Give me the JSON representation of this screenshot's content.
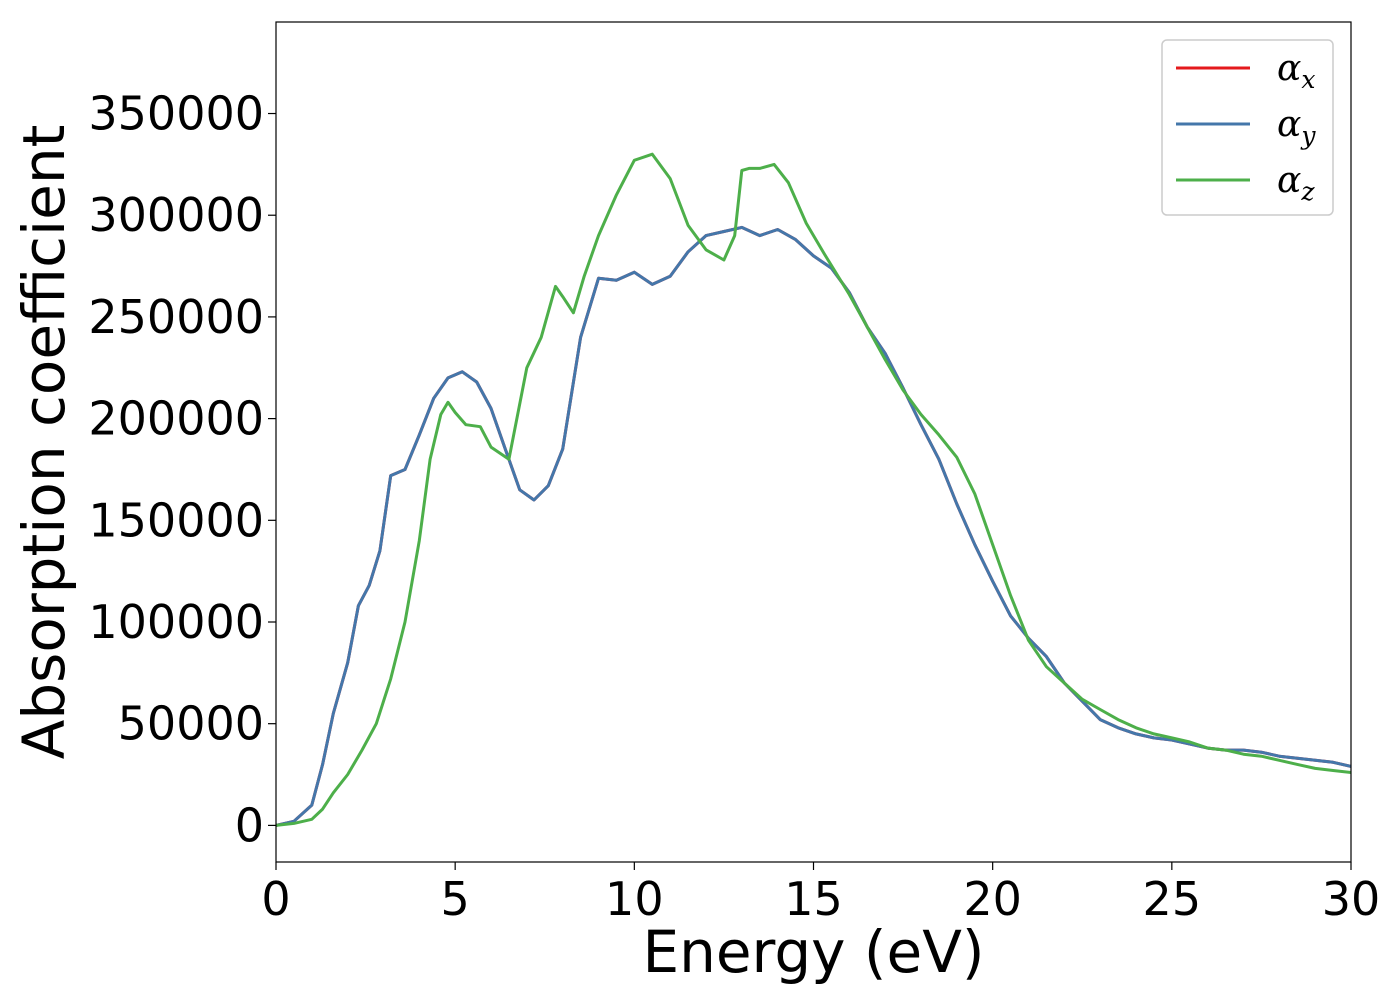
{
  "chart_data": {
    "type": "line",
    "title": "",
    "xlabel": "Energy (eV)",
    "ylabel": "Absorption coefficient",
    "xlim": [
      0,
      30
    ],
    "ylim": [
      -18000,
      395000
    ],
    "xticks": [
      0,
      5,
      10,
      15,
      20,
      25,
      30
    ],
    "yticks": [
      0,
      50000,
      100000,
      150000,
      200000,
      250000,
      300000,
      350000
    ],
    "grid": false,
    "legend_position": "top-right",
    "series": [
      {
        "name": "α",
        "subscript": "x",
        "color": "#e41a1c",
        "x": [
          0,
          0.5,
          1.0,
          1.3,
          1.6,
          2.0,
          2.3,
          2.6,
          2.9,
          3.2,
          3.6,
          4.0,
          4.4,
          4.8,
          5.2,
          5.6,
          6.0,
          6.4,
          6.8,
          7.2,
          7.6,
          8.0,
          8.5,
          9.0,
          9.5,
          10.0,
          10.5,
          11.0,
          11.5,
          12.0,
          12.5,
          13.0,
          13.5,
          14.0,
          14.5,
          15.0,
          15.5,
          16.0,
          16.5,
          17.0,
          17.5,
          18.0,
          18.5,
          19.0,
          19.5,
          20.0,
          20.5,
          21.0,
          21.5,
          22.0,
          22.5,
          23.0,
          23.5,
          24.0,
          24.5,
          25.0,
          25.5,
          26.0,
          26.5,
          27.0,
          27.5,
          28.0,
          28.5,
          29.0,
          29.5,
          30.0
        ],
        "y": [
          0,
          2000,
          10000,
          30000,
          55000,
          80000,
          108000,
          118000,
          135000,
          172000,
          175000,
          192000,
          210000,
          220000,
          223000,
          218000,
          205000,
          185000,
          165000,
          160000,
          167000,
          185000,
          240000,
          269000,
          268000,
          272000,
          266000,
          270000,
          282000,
          290000,
          292000,
          294000,
          290000,
          293000,
          288000,
          280000,
          274000,
          262000,
          245000,
          232000,
          215000,
          197000,
          180000,
          158000,
          138000,
          120000,
          103000,
          92000,
          83000,
          70000,
          61000,
          52000,
          48000,
          45000,
          43000,
          42000,
          40000,
          38000,
          37000,
          37000,
          36000,
          34000,
          33000,
          32000,
          31000,
          29000
        ]
      },
      {
        "name": "α",
        "subscript": "y",
        "color": "#4477aa",
        "x": [
          0,
          0.5,
          1.0,
          1.3,
          1.6,
          2.0,
          2.3,
          2.6,
          2.9,
          3.2,
          3.6,
          4.0,
          4.4,
          4.8,
          5.2,
          5.6,
          6.0,
          6.4,
          6.8,
          7.2,
          7.6,
          8.0,
          8.5,
          9.0,
          9.5,
          10.0,
          10.5,
          11.0,
          11.5,
          12.0,
          12.5,
          13.0,
          13.5,
          14.0,
          14.5,
          15.0,
          15.5,
          16.0,
          16.5,
          17.0,
          17.5,
          18.0,
          18.5,
          19.0,
          19.5,
          20.0,
          20.5,
          21.0,
          21.5,
          22.0,
          22.5,
          23.0,
          23.5,
          24.0,
          24.5,
          25.0,
          25.5,
          26.0,
          26.5,
          27.0,
          27.5,
          28.0,
          28.5,
          29.0,
          29.5,
          30.0
        ],
        "y": [
          0,
          2000,
          10000,
          30000,
          55000,
          80000,
          108000,
          118000,
          135000,
          172000,
          175000,
          192000,
          210000,
          220000,
          223000,
          218000,
          205000,
          185000,
          165000,
          160000,
          167000,
          185000,
          240000,
          269000,
          268000,
          272000,
          266000,
          270000,
          282000,
          290000,
          292000,
          294000,
          290000,
          293000,
          288000,
          280000,
          274000,
          262000,
          245000,
          232000,
          215000,
          197000,
          180000,
          158000,
          138000,
          120000,
          103000,
          92000,
          83000,
          70000,
          61000,
          52000,
          48000,
          45000,
          43000,
          42000,
          40000,
          38000,
          37000,
          37000,
          36000,
          34000,
          33000,
          32000,
          31000,
          29000
        ]
      },
      {
        "name": "α",
        "subscript": "z",
        "color": "#4daf4a",
        "x": [
          0,
          0.5,
          1.0,
          1.3,
          1.6,
          2.0,
          2.4,
          2.8,
          3.2,
          3.6,
          4.0,
          4.3,
          4.6,
          4.8,
          5.0,
          5.3,
          5.7,
          6.0,
          6.5,
          7.0,
          7.4,
          7.8,
          8.0,
          8.3,
          8.6,
          9.0,
          9.5,
          10.0,
          10.5,
          11.0,
          11.5,
          12.0,
          12.5,
          12.8,
          13.0,
          13.2,
          13.5,
          13.9,
          14.3,
          14.8,
          15.3,
          16.0,
          16.5,
          17.0,
          17.5,
          18.0,
          18.5,
          19.0,
          19.5,
          20.0,
          20.5,
          21.0,
          21.5,
          22.0,
          22.5,
          23.0,
          23.5,
          24.0,
          24.5,
          25.0,
          25.5,
          26.0,
          26.5,
          27.0,
          27.5,
          28.0,
          28.5,
          29.0,
          29.5,
          30.0
        ],
        "y": [
          0,
          1000,
          3000,
          8000,
          16000,
          25000,
          37000,
          50000,
          72000,
          100000,
          140000,
          180000,
          202000,
          208000,
          203000,
          197000,
          196000,
          186000,
          180000,
          225000,
          240000,
          265000,
          260000,
          252000,
          270000,
          290000,
          310000,
          327000,
          330000,
          318000,
          295000,
          283000,
          278000,
          290000,
          322000,
          323000,
          323000,
          325000,
          316000,
          296000,
          281000,
          261000,
          245000,
          229000,
          214000,
          202000,
          192000,
          181000,
          163000,
          138000,
          113000,
          91000,
          78000,
          70000,
          62000,
          57000,
          52000,
          48000,
          45000,
          43000,
          41000,
          38000,
          37000,
          35000,
          34000,
          32000,
          30000,
          28000,
          27000,
          26000
        ]
      }
    ]
  }
}
